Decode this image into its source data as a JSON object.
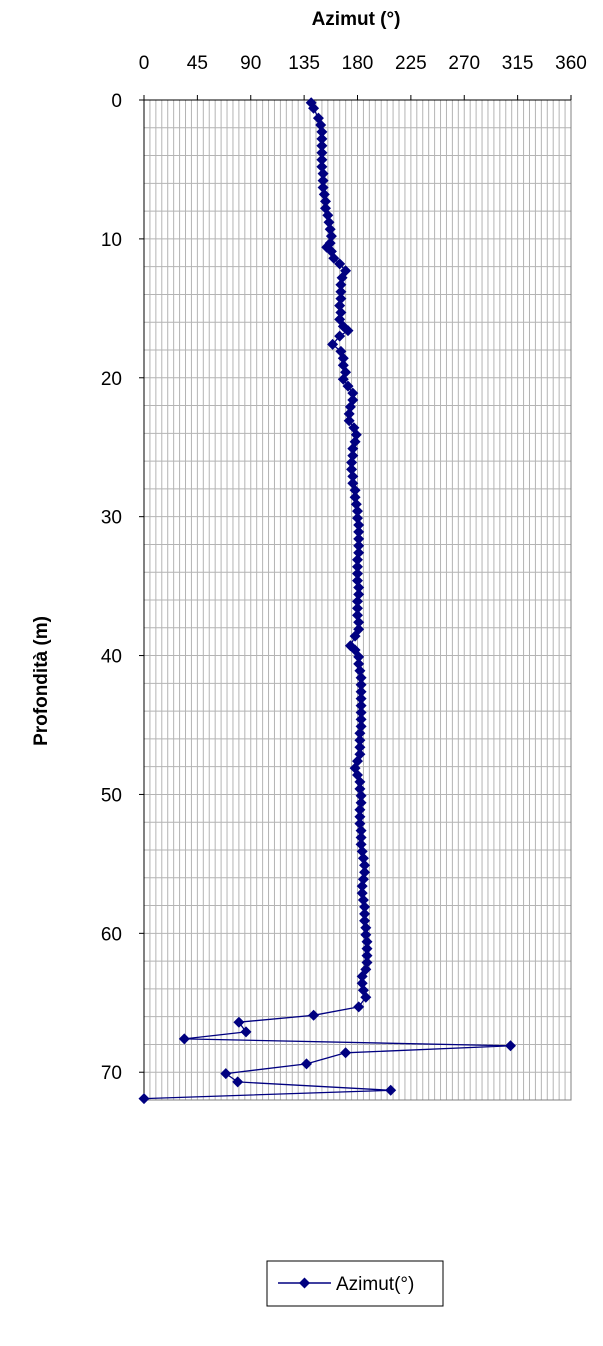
{
  "chart_data": {
    "type": "line",
    "title": "Azimut (°)",
    "xlabel": "Azimut (°)",
    "ylabel": "Profondità (m)",
    "xlim": [
      0,
      360
    ],
    "ylim": [
      0,
      72
    ],
    "y_inverted": true,
    "x_axis_position": "top",
    "x_ticks": [
      "0",
      "45",
      "90",
      "135",
      "180",
      "225",
      "270",
      "315",
      "360"
    ],
    "y_ticks": [
      "0",
      "10",
      "20",
      "30",
      "40",
      "50",
      "60",
      "70"
    ],
    "grid": true,
    "colors": {
      "series": "#000080"
    },
    "legend": {
      "position": "bottom",
      "entries": [
        "Azimut(°)"
      ]
    },
    "series": [
      {
        "name": "Azimut(°)",
        "marker": "diamond",
        "points": [
          [
            141,
            0.2
          ],
          [
            143,
            0.6
          ],
          [
            147,
            1.3
          ],
          [
            149,
            1.8
          ],
          [
            150,
            2.3
          ],
          [
            150,
            2.8
          ],
          [
            150,
            3.3
          ],
          [
            150,
            3.8
          ],
          [
            150,
            4.3
          ],
          [
            150,
            4.8
          ],
          [
            151,
            5.3
          ],
          [
            151,
            5.8
          ],
          [
            151,
            6.3
          ],
          [
            152,
            6.8
          ],
          [
            153,
            7.3
          ],
          [
            153,
            7.8
          ],
          [
            155,
            8.3
          ],
          [
            156,
            8.8
          ],
          [
            157,
            9.3
          ],
          [
            158,
            9.8
          ],
          [
            157,
            10.3
          ],
          [
            154,
            10.6
          ],
          [
            158,
            10.9
          ],
          [
            160,
            11.4
          ],
          [
            165,
            11.8
          ],
          [
            170,
            12.3
          ],
          [
            167,
            12.8
          ],
          [
            166,
            13.3
          ],
          [
            166,
            13.8
          ],
          [
            166,
            14.3
          ],
          [
            165,
            14.8
          ],
          [
            166,
            15.3
          ],
          [
            165,
            15.8
          ],
          [
            168,
            16.3
          ],
          [
            172,
            16.6
          ],
          [
            165,
            17.0
          ],
          [
            159,
            17.6
          ],
          [
            166,
            18.1
          ],
          [
            168,
            18.6
          ],
          [
            168,
            19.1
          ],
          [
            170,
            19.6
          ],
          [
            168,
            20.1
          ],
          [
            172,
            20.6
          ],
          [
            176,
            21.1
          ],
          [
            176,
            21.6
          ],
          [
            174,
            22.1
          ],
          [
            173,
            22.6
          ],
          [
            173,
            23.1
          ],
          [
            177,
            23.6
          ],
          [
            179,
            24.1
          ],
          [
            178,
            24.6
          ],
          [
            176,
            25.1
          ],
          [
            176,
            25.6
          ],
          [
            175,
            26.1
          ],
          [
            175,
            26.6
          ],
          [
            176,
            27.1
          ],
          [
            176,
            27.6
          ],
          [
            178,
            28.1
          ],
          [
            178,
            28.6
          ],
          [
            179,
            29.1
          ],
          [
            180,
            29.6
          ],
          [
            180,
            30.1
          ],
          [
            181,
            30.6
          ],
          [
            181,
            31.1
          ],
          [
            181,
            31.6
          ],
          [
            181,
            32.1
          ],
          [
            181,
            32.6
          ],
          [
            180,
            33.1
          ],
          [
            180,
            33.6
          ],
          [
            180,
            34.1
          ],
          [
            180,
            34.6
          ],
          [
            181,
            35.1
          ],
          [
            181,
            35.6
          ],
          [
            180,
            36.1
          ],
          [
            180,
            36.6
          ],
          [
            180,
            37.1
          ],
          [
            181,
            37.6
          ],
          [
            181,
            38.1
          ],
          [
            178,
            38.6
          ],
          [
            174,
            39.3
          ],
          [
            178,
            39.6
          ],
          [
            181,
            40.1
          ],
          [
            181,
            40.6
          ],
          [
            182,
            41.1
          ],
          [
            183,
            41.6
          ],
          [
            183,
            42.1
          ],
          [
            183,
            42.6
          ],
          [
            183,
            43.1
          ],
          [
            183,
            43.6
          ],
          [
            183,
            44.1
          ],
          [
            183,
            44.6
          ],
          [
            183,
            45.1
          ],
          [
            182,
            45.6
          ],
          [
            182,
            46.1
          ],
          [
            182,
            46.6
          ],
          [
            182,
            47.1
          ],
          [
            180,
            47.6
          ],
          [
            178,
            48.1
          ],
          [
            180,
            48.6
          ],
          [
            182,
            49.1
          ],
          [
            182,
            49.6
          ],
          [
            183,
            50.1
          ],
          [
            183,
            50.6
          ],
          [
            182,
            51.1
          ],
          [
            182,
            51.6
          ],
          [
            182,
            52.1
          ],
          [
            183,
            52.6
          ],
          [
            183,
            53.1
          ],
          [
            183,
            53.6
          ],
          [
            184,
            54.1
          ],
          [
            185,
            54.6
          ],
          [
            186,
            55.1
          ],
          [
            186,
            55.6
          ],
          [
            185,
            56.1
          ],
          [
            184,
            56.6
          ],
          [
            184,
            57.1
          ],
          [
            185,
            57.6
          ],
          [
            186,
            58.1
          ],
          [
            186,
            58.6
          ],
          [
            186,
            59.1
          ],
          [
            187,
            59.6
          ],
          [
            187,
            60.1
          ],
          [
            188,
            60.6
          ],
          [
            188,
            61.1
          ],
          [
            188,
            61.6
          ],
          [
            188,
            62.1
          ],
          [
            187,
            62.6
          ],
          [
            184,
            63.1
          ],
          [
            184,
            63.6
          ],
          [
            185,
            64.1
          ],
          [
            187,
            64.6
          ],
          [
            181,
            65.3
          ],
          [
            143,
            65.9
          ],
          [
            80,
            66.4
          ],
          [
            86,
            67.1
          ],
          [
            34,
            67.6
          ],
          [
            309,
            68.1
          ],
          [
            170,
            68.6
          ],
          [
            137,
            69.4
          ],
          [
            69,
            70.1
          ],
          [
            79,
            70.7
          ],
          [
            208,
            71.3
          ],
          [
            0,
            71.9
          ]
        ]
      }
    ]
  }
}
